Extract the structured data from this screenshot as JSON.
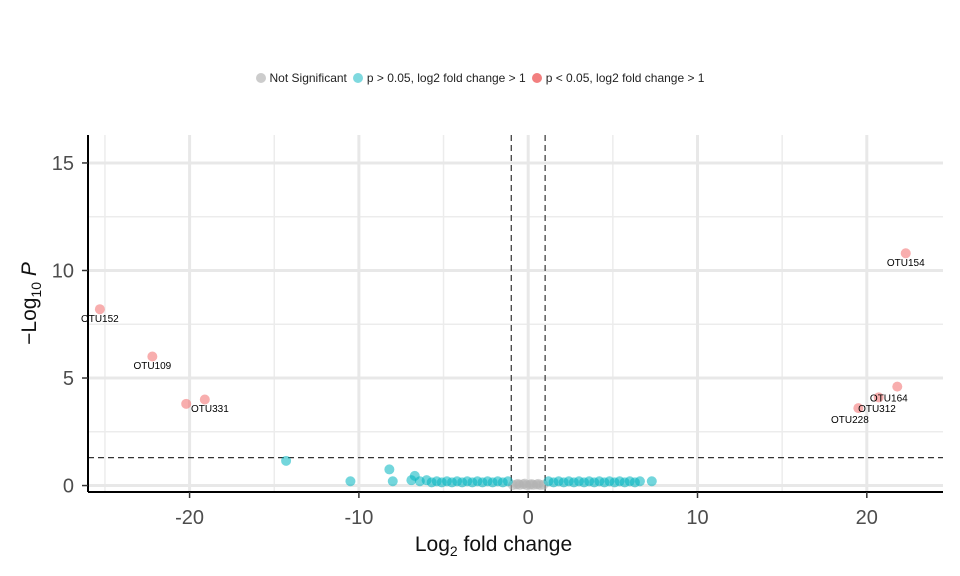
{
  "chart_data": {
    "type": "scatter",
    "title": "",
    "xlabel": {
      "base": "Log",
      "sub": "2",
      "rest": " fold change"
    },
    "ylabel": {
      "prefix": "−Log",
      "sub": "10",
      "italic": " P"
    },
    "xlim": [
      -26,
      24.5
    ],
    "ylim": [
      -0.3,
      16.3
    ],
    "x_ticks": [
      -20,
      -10,
      0,
      10,
      20
    ],
    "y_ticks": [
      0,
      5,
      10,
      15
    ],
    "grid": true,
    "legend_position": "top",
    "cutoffs": {
      "fold_change": [
        -1,
        1
      ],
      "p_value": 1.3
    },
    "series": [
      {
        "name": "Not Significant",
        "color": "#b3b3b3",
        "points": [
          [
            -0.9,
            0.02
          ],
          [
            -0.7,
            0.05
          ],
          [
            -0.5,
            0.03
          ],
          [
            -0.3,
            0.06
          ],
          [
            -0.1,
            0.02
          ],
          [
            0.1,
            0.04
          ],
          [
            0.3,
            0.03
          ],
          [
            0.5,
            0.05
          ],
          [
            0.7,
            0.02
          ],
          [
            0.9,
            0.04
          ],
          [
            -0.6,
            0.08
          ],
          [
            0.2,
            0.07
          ],
          [
            0.6,
            0.08
          ],
          [
            -0.2,
            0.09
          ]
        ]
      },
      {
        "name": "p > 0.05, log2 fold change > 1",
        "color": "#00b4c0",
        "points": [
          [
            -14.3,
            1.15
          ],
          [
            -10.5,
            0.2
          ],
          [
            -8.2,
            0.75
          ],
          [
            -8.0,
            0.2
          ],
          [
            -6.9,
            0.25
          ],
          [
            -6.7,
            0.45
          ],
          [
            -6.4,
            0.2
          ],
          [
            -6.0,
            0.25
          ],
          [
            -5.7,
            0.15
          ],
          [
            -5.4,
            0.2
          ],
          [
            -5.1,
            0.15
          ],
          [
            -4.8,
            0.2
          ],
          [
            -4.5,
            0.15
          ],
          [
            -4.2,
            0.2
          ],
          [
            -3.9,
            0.15
          ],
          [
            -3.6,
            0.2
          ],
          [
            -3.3,
            0.15
          ],
          [
            -3.0,
            0.2
          ],
          [
            -2.7,
            0.15
          ],
          [
            -2.4,
            0.2
          ],
          [
            -2.1,
            0.15
          ],
          [
            -1.8,
            0.2
          ],
          [
            -1.5,
            0.15
          ],
          [
            -1.2,
            0.2
          ],
          [
            1.2,
            0.2
          ],
          [
            1.5,
            0.15
          ],
          [
            1.8,
            0.2
          ],
          [
            2.1,
            0.15
          ],
          [
            2.4,
            0.2
          ],
          [
            2.7,
            0.15
          ],
          [
            3.0,
            0.2
          ],
          [
            3.3,
            0.15
          ],
          [
            3.6,
            0.2
          ],
          [
            3.9,
            0.15
          ],
          [
            4.2,
            0.2
          ],
          [
            4.5,
            0.15
          ],
          [
            4.8,
            0.2
          ],
          [
            5.1,
            0.15
          ],
          [
            5.4,
            0.2
          ],
          [
            5.7,
            0.15
          ],
          [
            6.0,
            0.2
          ],
          [
            6.3,
            0.15
          ],
          [
            6.6,
            0.2
          ],
          [
            7.3,
            0.2
          ]
        ]
      },
      {
        "name": "p < 0.05, log2 fold change > 1",
        "color": "#f26c6c",
        "points": [
          [
            -25.3,
            8.2
          ],
          [
            -22.2,
            6.0
          ],
          [
            -20.2,
            3.8
          ],
          [
            -19.1,
            4.0
          ],
          [
            19.5,
            3.6
          ],
          [
            20.7,
            4.1
          ],
          [
            21.8,
            4.6
          ],
          [
            22.3,
            10.8
          ]
        ]
      }
    ],
    "annotations": [
      {
        "text": "OTU152",
        "x": -25.3,
        "y": 7.8
      },
      {
        "text": "OTU109",
        "x": -22.2,
        "y": 5.6
      },
      {
        "text": "OTU331",
        "x": -18.8,
        "y": 3.6
      },
      {
        "text": "OTU154",
        "x": 22.3,
        "y": 10.4
      },
      {
        "text": "OTU164",
        "x": 21.3,
        "y": 4.1
      },
      {
        "text": "OTU312",
        "x": 20.6,
        "y": 3.6
      },
      {
        "text": "OTU228",
        "x": 19.0,
        "y": 3.1
      }
    ]
  }
}
